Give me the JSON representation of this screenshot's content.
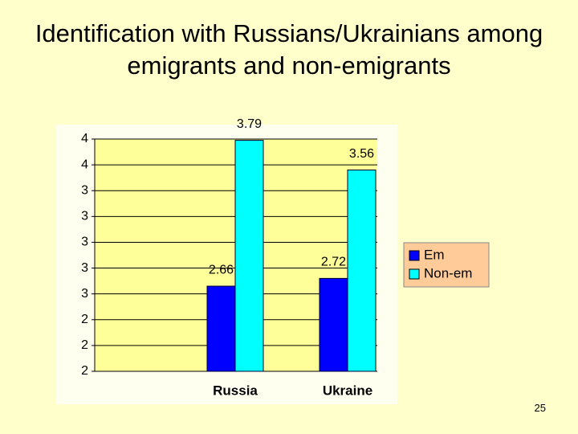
{
  "title": "Identification with Russians/Ukrainians among emigrants and non-emigrants",
  "slide_number": "25",
  "chart_data": {
    "type": "bar",
    "categories": [
      "Russia",
      "Ukraine"
    ],
    "series": [
      {
        "name": "Em",
        "color": "#0000ff",
        "values": [
          2.66,
          2.72
        ]
      },
      {
        "name": "Non-em",
        "color": "#00ffff",
        "values": [
          3.79,
          3.56
        ]
      }
    ],
    "ylim": [
      2,
      3.8
    ],
    "yticks": [
      2,
      {
        "value": 2.2,
        "label": "2"
      },
      {
        "value": 2.4,
        "label": "2"
      },
      {
        "value": 2.6,
        "label": "3"
      },
      {
        "value": 2.8,
        "label": "3"
      },
      3,
      {
        "value": 3.2,
        "label": "3"
      },
      {
        "value": 3.4,
        "label": "3"
      },
      {
        "value": 3.6,
        "label": "4"
      },
      {
        "value": 3.8,
        "label": "4"
      }
    ],
    "grid": true,
    "legend": "right"
  }
}
